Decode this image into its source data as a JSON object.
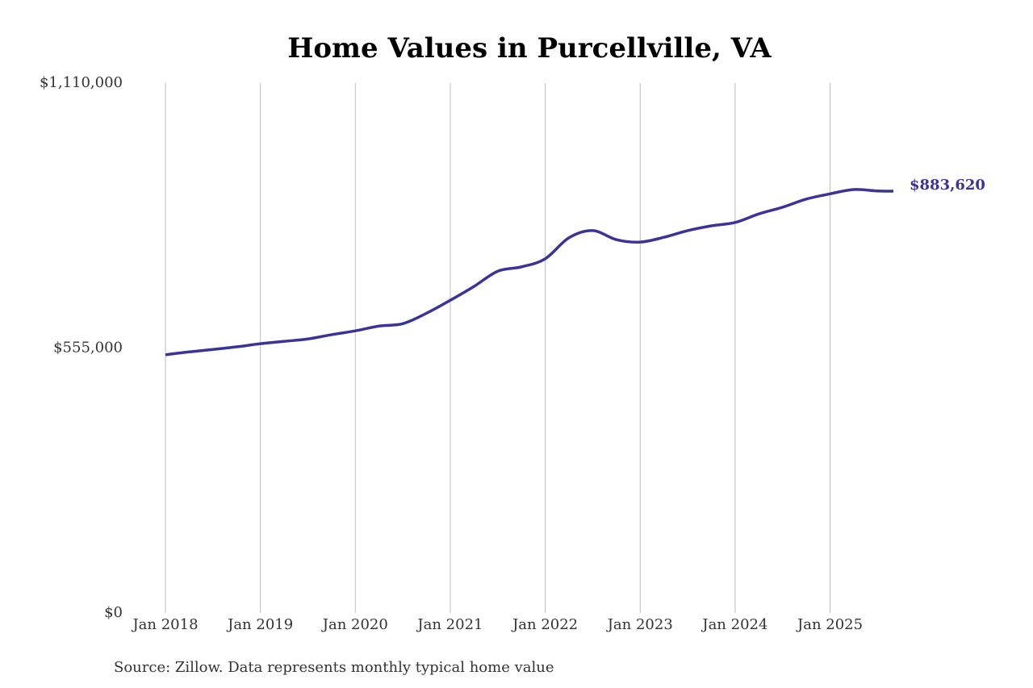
{
  "chart_data": {
    "type": "line",
    "title": "Home Values in Purcellville, VA",
    "source": "Source: Zillow. Data represents monthly typical home value",
    "color": "#3a3399",
    "x": [
      "2018-01",
      "2018-04",
      "2018-07",
      "2018-10",
      "2019-01",
      "2019-04",
      "2019-07",
      "2019-10",
      "2020-01",
      "2020-04",
      "2020-07",
      "2020-10",
      "2021-01",
      "2021-04",
      "2021-07",
      "2021-10",
      "2022-01",
      "2022-04",
      "2022-07",
      "2022-10",
      "2023-01",
      "2023-04",
      "2023-07",
      "2023-10",
      "2024-01",
      "2024-04",
      "2024-07",
      "2024-10",
      "2025-01",
      "2025-04",
      "2025-07",
      "2025-09"
    ],
    "values": [
      541000,
      547000,
      552000,
      557500,
      564000,
      569000,
      574000,
      583000,
      591000,
      601000,
      606000,
      628000,
      655000,
      684000,
      716000,
      725000,
      742000,
      786000,
      801000,
      782000,
      777000,
      787000,
      801000,
      811000,
      818000,
      836000,
      850000,
      867000,
      878000,
      887000,
      884000,
      883620
    ],
    "value_labels": [
      null,
      null,
      null,
      null,
      null,
      null,
      null,
      null,
      null,
      null,
      null,
      null,
      null,
      null,
      null,
      null,
      null,
      null,
      null,
      null,
      null,
      null,
      null,
      null,
      null,
      null,
      null,
      null,
      null,
      null,
      null,
      "$883,620"
    ],
    "ylim": [
      0,
      1110000
    ],
    "yticks": [
      {
        "value": 0,
        "label": "$0"
      },
      {
        "value": 555000,
        "label": "$555,000"
      },
      {
        "value": 1110000,
        "label": "$1,110,000"
      }
    ],
    "xticks": [
      {
        "value": "2018-01",
        "label": "Jan 2018"
      },
      {
        "value": "2019-01",
        "label": "Jan 2019"
      },
      {
        "value": "2020-01",
        "label": "Jan 2020"
      },
      {
        "value": "2021-01",
        "label": "Jan 2021"
      },
      {
        "value": "2022-01",
        "label": "Jan 2022"
      },
      {
        "value": "2023-01",
        "label": "Jan 2023"
      },
      {
        "value": "2024-01",
        "label": "Jan 2024"
      },
      {
        "value": "2025-01",
        "label": "Jan 2025"
      }
    ],
    "grid": "x"
  }
}
